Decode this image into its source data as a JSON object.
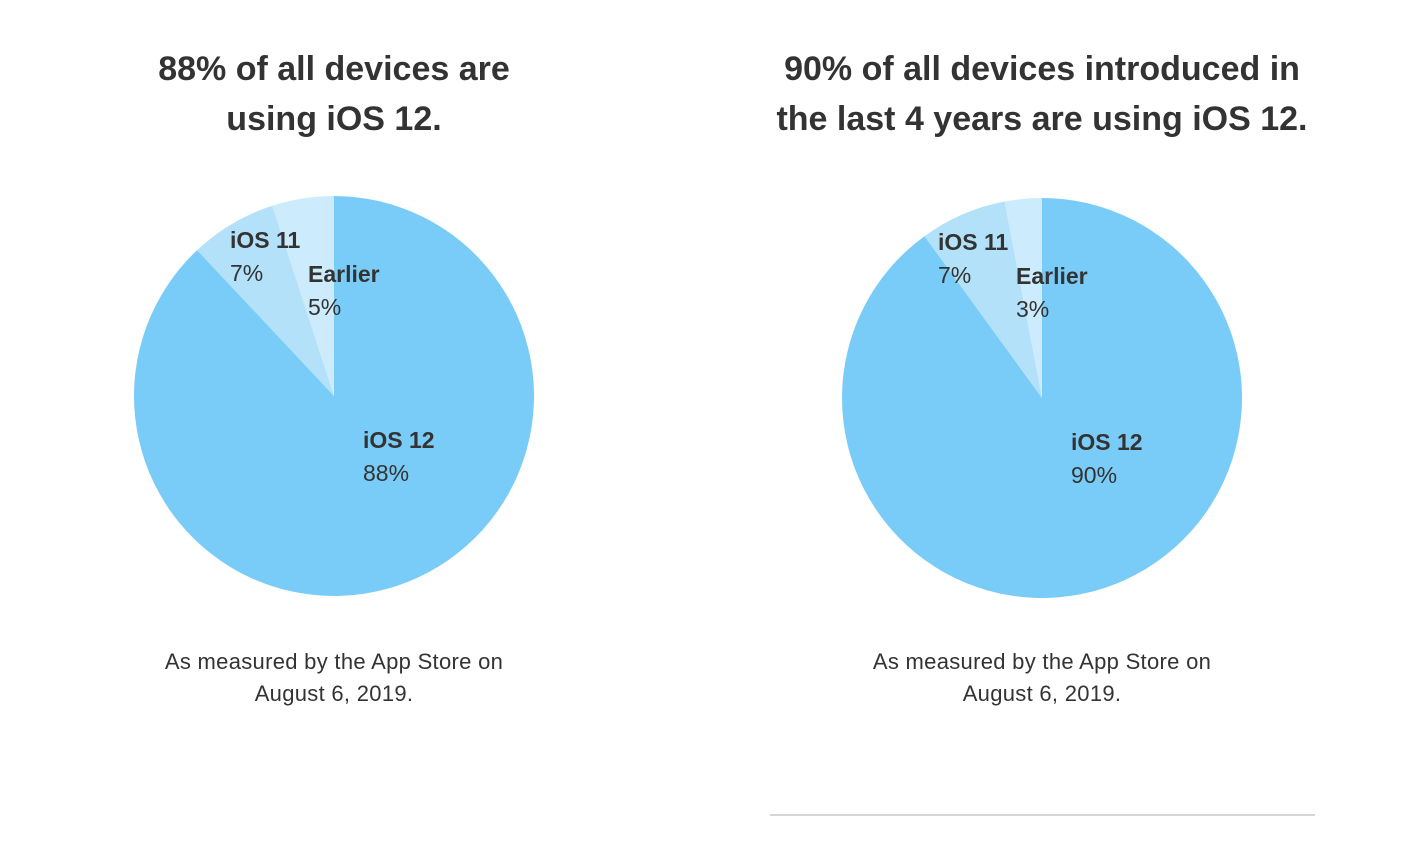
{
  "chart_data": [
    {
      "type": "pie",
      "title_lines": [
        "88% of all devices are",
        "using iOS 12."
      ],
      "slices": [
        {
          "label": "iOS 12",
          "value_text": "88%",
          "value": 88,
          "color": "#7ACCF8"
        },
        {
          "label": "iOS 11",
          "value_text": "7%",
          "value": 7,
          "color": "#B3E1FA"
        },
        {
          "label": "Earlier",
          "value_text": "5%",
          "value": 5,
          "color": "#CCEBFC"
        }
      ],
      "caption_lines": [
        "As measured by the App Store on",
        "August 6, 2019."
      ]
    },
    {
      "type": "pie",
      "title_lines": [
        "90% of all devices introduced in",
        "the last 4 years are using iOS 12."
      ],
      "slices": [
        {
          "label": "iOS 12",
          "value_text": "90%",
          "value": 90,
          "color": "#7ACCF8"
        },
        {
          "label": "iOS 11",
          "value_text": "7%",
          "value": 7,
          "color": "#B3E1FA"
        },
        {
          "label": "Earlier",
          "value_text": "3%",
          "value": 3,
          "color": "#CCEBFC"
        }
      ],
      "caption_lines": [
        "As measured by the App Store on",
        "August 6, 2019."
      ]
    }
  ]
}
